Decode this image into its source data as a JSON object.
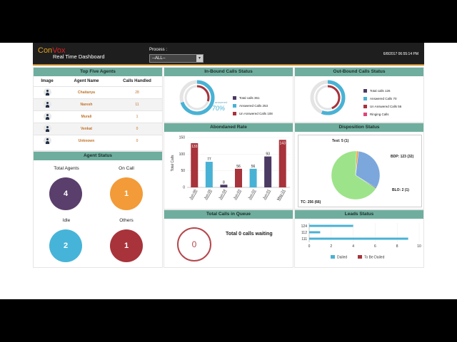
{
  "header": {
    "brand_con": "Con",
    "brand_vox": "Vox",
    "subtitle": "Real Time Dashboard",
    "process_label": "Process :",
    "process_value": "--ALL--",
    "datetime": "6/8/2017 06:55:14 PM"
  },
  "top_agents": {
    "title": "Top Five Agents",
    "columns": [
      "Image",
      "Agent Name",
      "Calls Handled"
    ],
    "rows": [
      {
        "name": "Chaitanya",
        "calls": "28"
      },
      {
        "name": "Naresh",
        "calls": "11"
      },
      {
        "name": "Murali",
        "calls": "1"
      },
      {
        "name": "Venkat",
        "calls": "0"
      },
      {
        "name": "Unknown",
        "calls": "0"
      }
    ]
  },
  "agent_status": {
    "title": "Agent Status",
    "items": [
      {
        "label": "Total Agents",
        "value": "4",
        "color": "#5a3e6b"
      },
      {
        "label": "On Call",
        "value": "1",
        "color": "#f29b38"
      },
      {
        "label": "Idle",
        "value": "2",
        "color": "#46b4d8"
      },
      {
        "label": "Others",
        "value": "1",
        "color": "#a8333b"
      }
    ]
  },
  "inbound": {
    "title": "In-Bound Calls Status",
    "legend": [
      {
        "label": "Total calls 361",
        "color": "#4b3a63"
      },
      {
        "label": "Answered Calls 253",
        "color": "#48b2d5"
      },
      {
        "label": "Un Answered Calls 108",
        "color": "#a8333b"
      }
    ],
    "ring_label": "answered",
    "percent": "70%",
    "answered_fraction": 0.7,
    "unanswered_fraction": 0.3
  },
  "outbound": {
    "title": "Out-Bound Calls Status",
    "legend": [
      {
        "label": "Total calls 126",
        "color": "#4b3a63"
      },
      {
        "label": "Answered Calls 70",
        "color": "#48b2d5"
      },
      {
        "label": "Un Answered Calls 56",
        "color": "#a8333b"
      },
      {
        "label": "Ringing Calls",
        "color": "#e0457a"
      }
    ],
    "answered_fraction": 0.56,
    "unanswered_fraction": 0.44
  },
  "chart_data": [
    {
      "type": "bar",
      "title": "Abondaned Rate",
      "ylabel": "Total Calls",
      "categories": [
        "Jun-06",
        "Jun-05",
        "Jun-04",
        "Jun-03",
        "Jun-02",
        "Jun-01",
        "May-31"
      ],
      "values": [
        133,
        77,
        8,
        56,
        56,
        93,
        143
      ],
      "colors": [
        "#a8333b",
        "#48b2d5",
        "#4b3a63",
        "#a8333b",
        "#48b2d5",
        "#4b3a63",
        "#a8333b"
      ],
      "ylim": [
        0,
        150
      ],
      "yticks": [
        "0",
        "50",
        "100",
        "150"
      ]
    },
    {
      "type": "pie",
      "title": "Disposition Status",
      "slices": [
        {
          "label": "TC: 256 (66)",
          "value": 256,
          "color": "#9de38a"
        },
        {
          "label": "BDP: 123 (32)",
          "value": 123,
          "color": "#7ba7dc"
        },
        {
          "label": "BLO: 2 (1)",
          "value": 2,
          "color": "#4a4a4a"
        },
        {
          "label": "Test: 5 (1)",
          "value": 5,
          "color": "#f29b38"
        }
      ]
    },
    {
      "type": "bar",
      "title": "Leads Status",
      "orientation": "horizontal",
      "categories": [
        "124",
        "112",
        "111"
      ],
      "series": [
        {
          "name": "Dailed",
          "values": [
            4,
            1,
            9
          ],
          "color": "#48b2d5"
        },
        {
          "name": "To Be Dailed",
          "values": [
            0,
            0,
            0
          ],
          "color": "#a8333b"
        }
      ],
      "xlim": [
        0,
        10
      ],
      "xticks": [
        "0",
        "2",
        "4",
        "6",
        "8",
        "10"
      ]
    }
  ],
  "queue": {
    "title": "Total Calls in Queue",
    "count": "0",
    "message": "Total 0 calls waiting"
  }
}
